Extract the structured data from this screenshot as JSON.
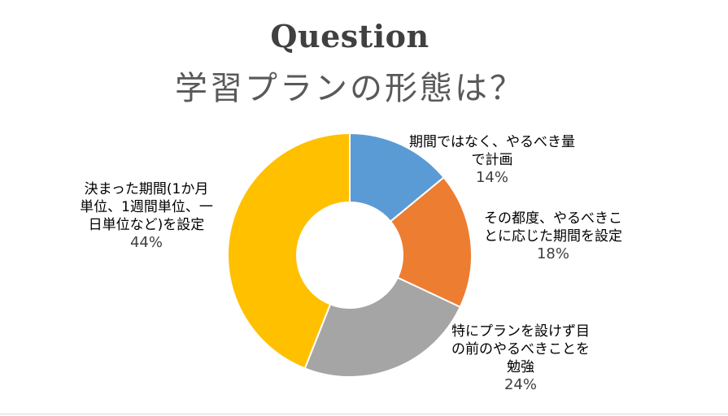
{
  "chart_data": {
    "type": "pie",
    "title": "Question",
    "subtitle": "学習プランの形態は？",
    "slices": [
      {
        "label_lines": [
          "期間ではなく、やるべき量",
          "で計画"
        ],
        "value": 14,
        "value_label": "14%",
        "color": "#5B9BD5"
      },
      {
        "label_lines": [
          "その都度、やるべきこ",
          "とに応じた期間を設定"
        ],
        "value": 18,
        "value_label": "18%",
        "color": "#ED7D31"
      },
      {
        "label_lines": [
          "特にプランを設けず目",
          "の前のやるべきことを",
          "勉強"
        ],
        "value": 24,
        "value_label": "24%",
        "color": "#A5A5A5"
      },
      {
        "label_lines": [
          "決まった期間(1か月",
          "単位、1週間単位、一",
          "日単位など)を設定"
        ],
        "value": 44,
        "value_label": "44%",
        "color": "#FFC000"
      }
    ],
    "donut": true,
    "start_angle": "12 o'clock",
    "direction": "clockwise",
    "legend": "none"
  }
}
